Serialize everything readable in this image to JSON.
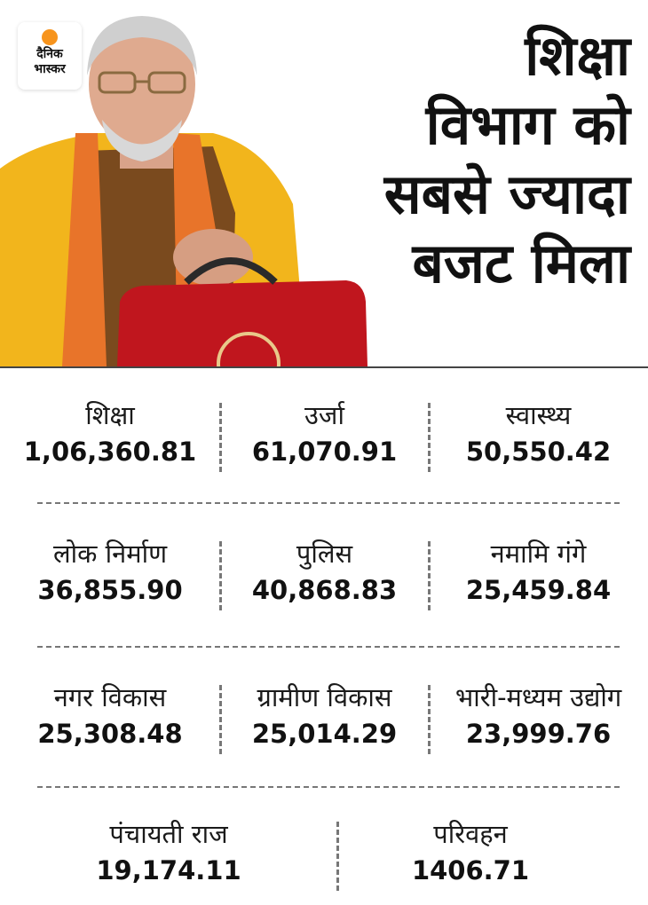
{
  "brand": {
    "line1": "दैनिक",
    "line2": "भास्कर",
    "accent_color": "#f7941d"
  },
  "headline": [
    "शिक्षा",
    "विभाग को",
    "सबसे ज्यादा",
    "बजट मिला"
  ],
  "rows": [
    [
      {
        "label": "शिक्षा",
        "value": "1,06,360.81"
      },
      {
        "label": "उर्जा",
        "value": "61,070.91"
      },
      {
        "label": "स्वास्थ्य",
        "value": "50,550.42"
      }
    ],
    [
      {
        "label": "लोक निर्माण",
        "value": "36,855.90"
      },
      {
        "label": "पुलिस",
        "value": "40,868.83"
      },
      {
        "label": "नमामि गंगे",
        "value": "25,459.84"
      }
    ],
    [
      {
        "label": "नगर विकास",
        "value": "25,308.48"
      },
      {
        "label": "ग्रामीण विकास",
        "value": "25,014.29"
      },
      {
        "label": "भारी-मध्यम उद्योग",
        "value": "23,999.76"
      }
    ],
    [
      {
        "label": "पंचायती राज",
        "value": "19,174.11"
      },
      {
        "label": "परिवहन",
        "value": "1406.71"
      }
    ]
  ]
}
